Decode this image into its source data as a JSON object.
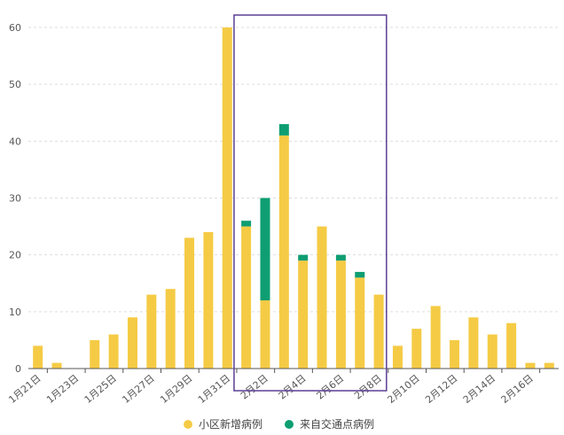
{
  "chart_data": {
    "type": "bar",
    "stacked": true,
    "categories": [
      "1月21日",
      "1月22日",
      "1月23日",
      "1月24日",
      "1月25日",
      "1月26日",
      "1月27日",
      "1月28日",
      "1月29日",
      "1月30日",
      "1月31日",
      "2月1日",
      "2月2日",
      "2月3日",
      "2月4日",
      "2月5日",
      "2月6日",
      "2月7日",
      "2月8日",
      "2月9日",
      "2月10日",
      "2月11日",
      "2月12日",
      "2月13日",
      "2月14日",
      "2月15日",
      "2月16日",
      "2月17日"
    ],
    "x_tick_labels": [
      "1月21日",
      "1月23日",
      "1月25日",
      "1月27日",
      "1月29日",
      "1月31日",
      "2月2日",
      "2月4日",
      "2月6日",
      "2月8日",
      "2月10日",
      "2月12日",
      "2月14日",
      "2月16日"
    ],
    "series": [
      {
        "name": "小区新增病例",
        "color": "#F5CB45",
        "values": [
          4,
          1,
          0,
          5,
          6,
          9,
          13,
          14,
          23,
          24,
          60,
          25,
          12,
          41,
          19,
          25,
          19,
          16,
          13,
          4,
          7,
          11,
          5,
          9,
          6,
          8,
          1,
          1
        ]
      },
      {
        "name": "来自交通点病例",
        "color": "#0E9E72",
        "values": [
          0,
          0,
          0,
          0,
          0,
          0,
          0,
          0,
          0,
          0,
          0,
          1,
          18,
          2,
          1,
          0,
          1,
          1,
          0,
          0,
          0,
          0,
          0,
          0,
          0,
          0,
          0,
          0
        ]
      }
    ],
    "ylim": [
      0,
      60
    ],
    "yticks": [
      0,
      10,
      20,
      30,
      40,
      50,
      60
    ],
    "grid": "horizontal dashed",
    "legend": "bottom-center",
    "highlight": {
      "from": "2月1日",
      "to": "2月8日",
      "color": "#5B3F94"
    }
  }
}
